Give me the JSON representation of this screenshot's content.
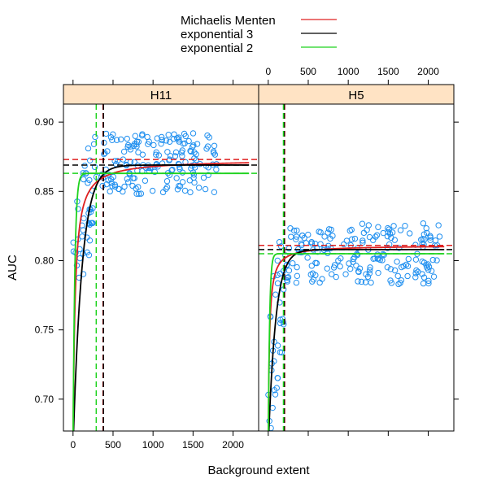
{
  "chart_data": {
    "type": "scatter",
    "xlabel": "Background extent",
    "ylabel": "AUC",
    "xlim": [
      -120,
      2320
    ],
    "ylim": [
      0.677,
      0.913
    ],
    "x_ticks": [
      0,
      500,
      1000,
      1500,
      2000
    ],
    "y_ticks": [
      0.7,
      0.75,
      0.8,
      0.85,
      0.9
    ],
    "y_tick_labels": [
      "0.70",
      "0.75",
      "0.80",
      "0.85",
      "0.90"
    ],
    "legend": {
      "position": "top",
      "entries": [
        {
          "label": "Michaelis Menten",
          "color": "#df2020"
        },
        {
          "label": "exponential 3",
          "color": "#000000"
        },
        {
          "label": "exponential 2",
          "color": "#1ed21e"
        }
      ]
    },
    "colors": {
      "points": "#1f8fef",
      "strip": "#ffe3c4",
      "Michaelis Menten": "#df2020",
      "exponential 3": "#000000",
      "exponential 2": "#1ed21e"
    },
    "panels": [
      {
        "name": "H11",
        "x_axis_side": "bottom",
        "points_cluster": [
          {
            "x_range": [
              0,
              300
            ],
            "y_center": 0.825,
            "spread": 0.04,
            "n": 45
          },
          {
            "x_range": [
              350,
              1800
            ],
            "y_center": 0.87,
            "spread": 0.022,
            "n": 175
          }
        ],
        "curves": [
          {
            "model": "Michaelis Menten",
            "asymptote": 0.873,
            "half_sat": 25,
            "y0": 0.665
          },
          {
            "model": "exponential 3",
            "asymptote": 0.869,
            "rate": 0.009,
            "y0": 0.665
          },
          {
            "model": "exponential 2",
            "asymptote": 0.863,
            "rate": 0.045,
            "y0": 0.665
          }
        ],
        "hlines": [
          {
            "model": "Michaelis Menten",
            "y": 0.873
          },
          {
            "model": "exponential 3",
            "y": 0.869
          },
          {
            "model": "exponential 2",
            "y": 0.863
          }
        ],
        "vlines": [
          {
            "model": "Michaelis Menten",
            "x": 375
          },
          {
            "model": "exponential 3",
            "x": 380
          },
          {
            "model": "exponential 2",
            "x": 290
          }
        ]
      },
      {
        "name": "H5",
        "x_axis_side": "top",
        "points_cluster": [
          {
            "x_range": [
              0,
              200
            ],
            "y_center": 0.745,
            "spread": 0.05,
            "n": 35
          },
          {
            "x_range": [
              210,
              2150
            ],
            "y_center": 0.805,
            "spread": 0.022,
            "n": 195
          }
        ],
        "curves": [
          {
            "model": "Michaelis Menten",
            "asymptote": 0.811,
            "half_sat": 14,
            "y0": 0.665
          },
          {
            "model": "exponential 3",
            "asymptote": 0.808,
            "rate": 0.011,
            "y0": 0.665
          },
          {
            "model": "exponential 2",
            "asymptote": 0.805,
            "rate": 0.06,
            "y0": 0.665
          }
        ],
        "hlines": [
          {
            "model": "Michaelis Menten",
            "y": 0.811
          },
          {
            "model": "exponential 3",
            "y": 0.808
          },
          {
            "model": "exponential 2",
            "y": 0.805
          }
        ],
        "vlines": [
          {
            "model": "Michaelis Menten",
            "x": 205
          },
          {
            "model": "exponential 3",
            "x": 200
          },
          {
            "model": "exponential 2",
            "x": 190
          }
        ]
      }
    ]
  }
}
